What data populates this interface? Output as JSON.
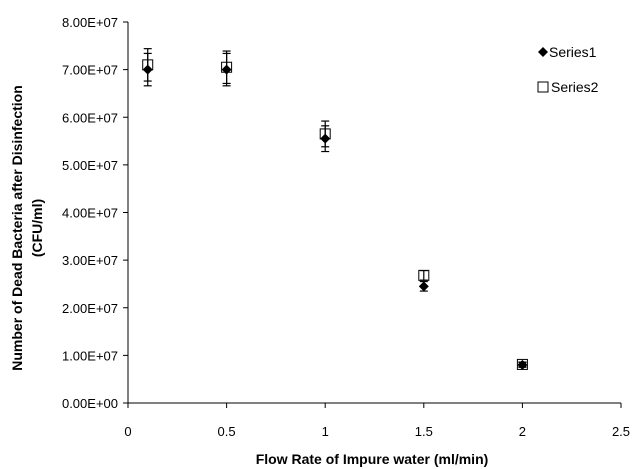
{
  "chart_data": {
    "type": "scatter",
    "title": "",
    "xlabel": "Flow Rate of Impure water (ml/min)",
    "ylabel_line1": "Number of Dead Bacteria after Disinfection",
    "ylabel_line2": "(CFU/ml)",
    "xlim": [
      0,
      2.5
    ],
    "ylim": [
      0,
      80000000
    ],
    "x_ticks": [
      0,
      0.5,
      1,
      1.5,
      2,
      2.5
    ],
    "x_tick_labels": [
      "0",
      "0.5",
      "1",
      "1.5",
      "2",
      "2.5"
    ],
    "y_ticks": [
      0,
      10000000,
      20000000,
      30000000,
      40000000,
      50000000,
      60000000,
      70000000,
      80000000
    ],
    "y_tick_labels": [
      "0.00E+00",
      "1.00E+07",
      "2.00E+07",
      "3.00E+07",
      "4.00E+07",
      "5.00E+07",
      "6.00E+07",
      "7.00E+07",
      "8.00E+07"
    ],
    "grid": false,
    "legend_position": "top-right",
    "series": [
      {
        "name": "Series1",
        "marker": "filled-diamond",
        "color": "#000000",
        "x": [
          0.1,
          0.5,
          1,
          1.5,
          2
        ],
        "y": [
          70000000,
          70000000,
          55500000,
          24500000,
          8000000
        ],
        "err": [
          3400000,
          3400000,
          2700000,
          1000000,
          500000
        ]
      },
      {
        "name": "Series2",
        "marker": "open-square",
        "color": "#000000",
        "x": [
          0.1,
          0.5,
          1,
          1.5,
          2
        ],
        "y": [
          71000000,
          70500000,
          56500000,
          26800000,
          8100000
        ],
        "err": [
          3400000,
          3400000,
          2700000,
          1000000,
          500000
        ]
      }
    ]
  }
}
